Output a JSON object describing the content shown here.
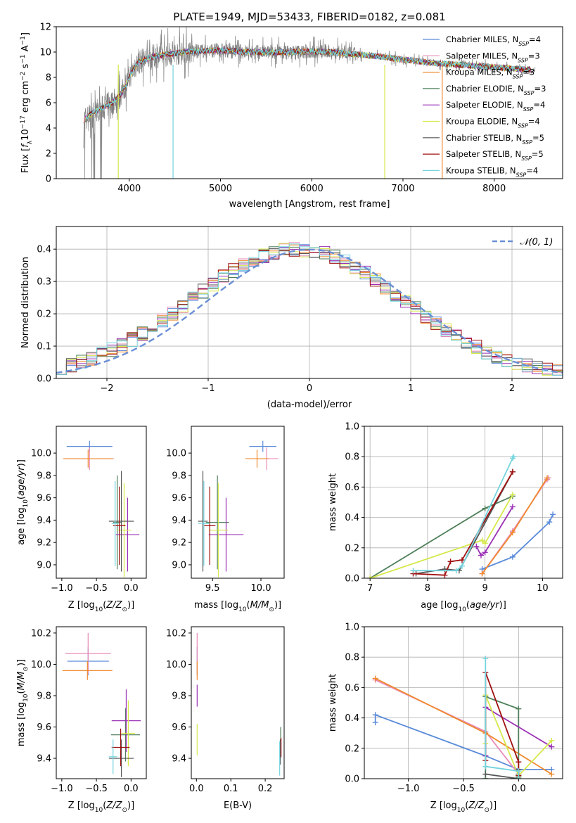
{
  "series": [
    {
      "name": "Chabrier MILES",
      "nssp": "4",
      "color": "#5b8bd9"
    },
    {
      "name": "Salpeter MILES",
      "nssp": "3",
      "color": "#e889b6"
    },
    {
      "name": "Kroupa MILES",
      "nssp": "3",
      "color": "#f08a2e"
    },
    {
      "name": "Chabrier ELODIE",
      "nssp": "3",
      "color": "#4f7f5a"
    },
    {
      "name": "Salpeter ELODIE",
      "nssp": "4",
      "color": "#9b30b5"
    },
    {
      "name": "Kroupa ELODIE",
      "nssp": "4",
      "color": "#d6e84a"
    },
    {
      "name": "Chabrier STELIB",
      "nssp": "5",
      "color": "#555555"
    },
    {
      "name": "Salpeter STELIB",
      "nssp": "5",
      "color": "#a01010"
    },
    {
      "name": "Kroupa STELIB",
      "nssp": "4",
      "color": "#74d4de"
    }
  ],
  "chart_data": [
    {
      "id": "spectrum",
      "type": "line",
      "title": "PLATE=1949, MJD=53433, FIBERID=0182, z=0.081",
      "xlabel": "wavelength [Angstrom, rest frame]",
      "ylabel": "Flux [f_λ10^-17 erg cm^-2 s^-1 A^-1]",
      "xlim": [
        3200,
        8750
      ],
      "ylim": [
        0,
        12
      ],
      "xticks": [
        "4000",
        "5000",
        "6000",
        "7000",
        "8000"
      ],
      "yticks": [
        "0",
        "2",
        "4",
        "6",
        "8",
        "10",
        "12"
      ],
      "legend_loc": "right",
      "continuum": {
        "x": [
          3500,
          3600,
          3700,
          3800,
          3900,
          3950,
          4000,
          4050,
          4100,
          4200,
          4300,
          4400,
          4600,
          4800,
          5000,
          5200,
          5400,
          5600,
          5800,
          6000,
          6200,
          6400,
          6600,
          6800,
          7000,
          7200,
          7400,
          7600,
          7800,
          8000,
          8200,
          8400
        ],
        "y": [
          4.6,
          5.2,
          5.6,
          5.9,
          6.6,
          7.2,
          8.0,
          8.7,
          9.2,
          9.5,
          9.7,
          9.8,
          10.0,
          10.1,
          10.15,
          10.05,
          10.0,
          9.95,
          10.0,
          10.05,
          10.0,
          9.85,
          9.75,
          9.6,
          9.4,
          9.25,
          9.1,
          9.0,
          8.9,
          8.8,
          8.7,
          8.6
        ]
      }
    },
    {
      "id": "residuals",
      "type": "line",
      "xlabel": "(data-model)/error",
      "ylabel": "Normed distribution",
      "xlim": [
        -2.5,
        2.5
      ],
      "ylim": [
        0,
        0.47
      ],
      "xticks": [
        "−2",
        "−1",
        "0",
        "1",
        "2"
      ],
      "yticks": [
        "0.0",
        "0.1",
        "0.2",
        "0.3",
        "0.4"
      ],
      "legend": "𝒩(0, 1)",
      "legend_loc": "top-right",
      "grid": true
    },
    {
      "id": "age-vs-Z",
      "type": "scatter",
      "xlabel": "Z [log10(Z/Z⊙)]",
      "ylabel": "age [log10(age/yr)]",
      "xlim": [
        -1.08,
        0.22
      ],
      "ylim": [
        8.88,
        10.24
      ],
      "xticks": [
        "−1.0",
        "−0.5",
        "0.0"
      ],
      "yticks": [
        "9.0",
        "9.2",
        "9.4",
        "9.6",
        "9.8",
        "10.0"
      ],
      "points": [
        {
          "x": -0.6,
          "y": 10.06,
          "xerr": 0.33,
          "yerr": 0.05
        },
        {
          "x": -0.6,
          "y": 9.95,
          "xerr": 0.35,
          "yerr": 0.1
        },
        {
          "x": -0.62,
          "y": 9.95,
          "xerr": 0.36,
          "yerr": 0.08
        },
        {
          "x": -0.2,
          "y": 9.38,
          "xerr": 0.06,
          "yerr": 0.42
        },
        {
          "x": -0.05,
          "y": 9.27,
          "xerr": 0.17,
          "yerr": 0.33
        },
        {
          "x": -0.1,
          "y": 9.31,
          "xerr": 0.1,
          "yerr": 0.42
        },
        {
          "x": -0.14,
          "y": 9.39,
          "xerr": 0.18,
          "yerr": 0.45
        },
        {
          "x": -0.17,
          "y": 9.35,
          "xerr": 0.09,
          "yerr": 0.35
        },
        {
          "x": -0.23,
          "y": 9.37,
          "xerr": 0.05,
          "yerr": 0.38
        }
      ]
    },
    {
      "id": "age-vs-mass",
      "type": "scatter",
      "xlabel": "mass [log10(M/M⊙)]",
      "ylabel": "",
      "xlim": [
        9.28,
        10.24
      ],
      "ylim": [
        8.88,
        10.24
      ],
      "xticks": [
        "9.5",
        "10.0"
      ],
      "yticks": [
        "9.0",
        "9.2",
        "9.4",
        "9.6",
        "9.8",
        "10.0"
      ],
      "points": [
        {
          "x": 10.02,
          "y": 10.06,
          "xerr": 0.14,
          "yerr": 0.05
        },
        {
          "x": 10.06,
          "y": 9.95,
          "xerr": 0.12,
          "yerr": 0.1
        },
        {
          "x": 9.96,
          "y": 9.95,
          "xerr": 0.12,
          "yerr": 0.08
        },
        {
          "x": 9.55,
          "y": 9.38,
          "xerr": 0.12,
          "yerr": 0.42
        },
        {
          "x": 9.64,
          "y": 9.27,
          "xerr": 0.18,
          "yerr": 0.33
        },
        {
          "x": 9.56,
          "y": 9.31,
          "xerr": 0.1,
          "yerr": 0.42
        },
        {
          "x": 9.4,
          "y": 9.39,
          "xerr": 0.05,
          "yerr": 0.45
        },
        {
          "x": 9.47,
          "y": 9.35,
          "xerr": 0.06,
          "yerr": 0.35
        },
        {
          "x": 9.41,
          "y": 9.37,
          "xerr": 0.06,
          "yerr": 0.38
        }
      ]
    },
    {
      "id": "massweight-vs-age",
      "type": "line",
      "xlabel": "age [log10(age/yr)]",
      "ylabel": "mass weight",
      "xlim": [
        6.9,
        10.35
      ],
      "ylim": [
        0,
        1.0
      ],
      "xticks": [
        "7",
        "8",
        "9",
        "10"
      ],
      "yticks": [
        "0.0",
        "0.2",
        "0.4",
        "0.6",
        "0.8",
        "1.0"
      ],
      "grid": true,
      "lines": [
        {
          "x": [
            8.95,
            9.48,
            10.12,
            10.18
          ],
          "y": [
            0.06,
            0.14,
            0.37,
            0.42
          ]
        },
        {
          "x": [
            8.95,
            9.48,
            10.08,
            10.1
          ],
          "y": [
            0.03,
            0.31,
            0.65,
            0.66
          ]
        },
        {
          "x": [
            8.95,
            9.48,
            10.08
          ],
          "y": [
            0.03,
            0.3,
            0.66
          ]
        },
        {
          "x": [
            7.0,
            9.0,
            9.48
          ],
          "y": [
            0.0,
            0.46,
            0.54
          ]
        },
        {
          "x": [
            8.85,
            8.93,
            9.0,
            9.48
          ],
          "y": [
            0.21,
            0.15,
            0.17,
            0.47
          ]
        },
        {
          "x": [
            7.0,
            8.95,
            9.0,
            9.48
          ],
          "y": [
            0.0,
            0.25,
            0.23,
            0.55
          ]
        },
        {
          "x": [
            7.8,
            8.3,
            8.55,
            9.48
          ],
          "y": [
            0.03,
            0.06,
            0.05,
            0.7
          ]
        },
        {
          "x": [
            7.75,
            8.3,
            8.4,
            8.6,
            9.48
          ],
          "y": [
            0.03,
            0.02,
            0.11,
            0.12,
            0.7
          ]
        },
        {
          "x": [
            7.75,
            8.5,
            8.6,
            9.48,
            9.5
          ],
          "y": [
            0.05,
            0.05,
            0.08,
            0.79,
            0.8
          ]
        }
      ]
    },
    {
      "id": "mass-vs-Z",
      "type": "scatter",
      "xlabel": "Z [log10(Z/Z⊙)]",
      "ylabel": "mass [log10(M/M⊙)]",
      "xlim": [
        -1.08,
        0.22
      ],
      "ylim": [
        9.27,
        10.24
      ],
      "xticks": [
        "−1.0",
        "−0.5",
        "0.0"
      ],
      "yticks": [
        "9.4",
        "9.6",
        "9.8",
        "10.0",
        "10.2"
      ],
      "points": [
        {
          "x": -0.62,
          "y": 10.02,
          "xerr": 0.3,
          "yerr": 0.09
        },
        {
          "x": -0.62,
          "y": 10.07,
          "xerr": 0.33,
          "yerr": 0.13
        },
        {
          "x": -0.63,
          "y": 9.96,
          "xerr": 0.36,
          "yerr": 0.06
        },
        {
          "x": -0.08,
          "y": 9.55,
          "xerr": 0.21,
          "yerr": 0.17
        },
        {
          "x": -0.07,
          "y": 9.64,
          "xerr": 0.21,
          "yerr": 0.2
        },
        {
          "x": -0.04,
          "y": 9.56,
          "xerr": 0.1,
          "yerr": 0.21
        },
        {
          "x": -0.14,
          "y": 9.4,
          "xerr": 0.18,
          "yerr": 0.12
        },
        {
          "x": -0.15,
          "y": 9.47,
          "xerr": 0.13,
          "yerr": 0.12
        },
        {
          "x": -0.26,
          "y": 9.41,
          "xerr": 0.06,
          "yerr": 0.11
        }
      ]
    },
    {
      "id": "mass-vs-EBV",
      "type": "scatter",
      "xlabel": "E(B-V)",
      "ylabel": "",
      "xlim": [
        -0.015,
        0.255
      ],
      "ylim": [
        9.27,
        10.24
      ],
      "xticks": [
        "0.0",
        "0.1",
        "0.2"
      ],
      "yticks": [
        "9.4",
        "9.6",
        "9.8",
        "10.0",
        "10.2"
      ],
      "points": [
        {
          "x": 0.002,
          "y": 10.02,
          "xerr": 0,
          "yerr": 0.09
        },
        {
          "x": 0.002,
          "y": 10.07,
          "xerr": 0,
          "yerr": 0.13
        },
        {
          "x": 0.002,
          "y": 9.96,
          "xerr": 0,
          "yerr": 0.06
        },
        {
          "x": 0.245,
          "y": 9.5,
          "xerr": 0,
          "yerr": 0.1
        },
        {
          "x": 0.002,
          "y": 9.8,
          "xerr": 0,
          "yerr": 0.07
        },
        {
          "x": 0.002,
          "y": 9.52,
          "xerr": 0,
          "yerr": 0.1
        },
        {
          "x": 0.244,
          "y": 9.44,
          "xerr": 0,
          "yerr": 0.08
        },
        {
          "x": 0.246,
          "y": 9.47,
          "xerr": 0,
          "yerr": 0.06
        },
        {
          "x": 0.242,
          "y": 9.4,
          "xerr": 0,
          "yerr": 0.11
        }
      ]
    },
    {
      "id": "massweight-vs-Z",
      "type": "line",
      "xlabel": "Z [log10(Z/Z⊙)]",
      "ylabel": "mass weight",
      "xlim": [
        -1.4,
        0.4
      ],
      "ylim": [
        0,
        1.0
      ],
      "xticks": [
        "−1.0",
        "−0.5",
        "0.0"
      ],
      "yticks": [
        "0.0",
        "0.2",
        "0.4",
        "0.6",
        "0.8",
        "1.0"
      ],
      "grid": true,
      "lines": [
        {
          "x": [
            -1.3,
            -1.3,
            -0.3,
            0.0,
            0.3
          ],
          "y": [
            0.37,
            0.42,
            0.15,
            0.06,
            0.06
          ]
        },
        {
          "x": [
            -1.3,
            -0.3,
            0.0
          ],
          "y": [
            0.65,
            0.31,
            0.03
          ]
        },
        {
          "x": [
            -1.3,
            -0.3,
            0.3
          ],
          "y": [
            0.66,
            0.3,
            0.03
          ]
        },
        {
          "x": [
            -0.3,
            -0.3,
            0.0,
            0.0,
            0.0
          ],
          "y": [
            0.0,
            0.54,
            0.46,
            0.01,
            0.03
          ]
        },
        {
          "x": [
            -0.3,
            -0.3,
            0.3
          ],
          "y": [
            0.15,
            0.47,
            0.21
          ]
        },
        {
          "x": [
            -0.3,
            -0.3,
            0.0,
            0.3
          ],
          "y": [
            0.23,
            0.55,
            0.02,
            0.25
          ]
        },
        {
          "x": [
            -0.3,
            0.0,
            0.0
          ],
          "y": [
            0.03,
            0.0,
            0.06
          ]
        },
        {
          "x": [
            -0.3,
            -0.3,
            0.0,
            0.0
          ],
          "y": [
            0.12,
            0.7,
            0.11,
            0.02
          ]
        },
        {
          "x": [
            -0.3,
            -0.3,
            0.0,
            0.0
          ],
          "y": [
            0.79,
            0.08,
            0.05,
            0.0
          ]
        }
      ]
    }
  ]
}
